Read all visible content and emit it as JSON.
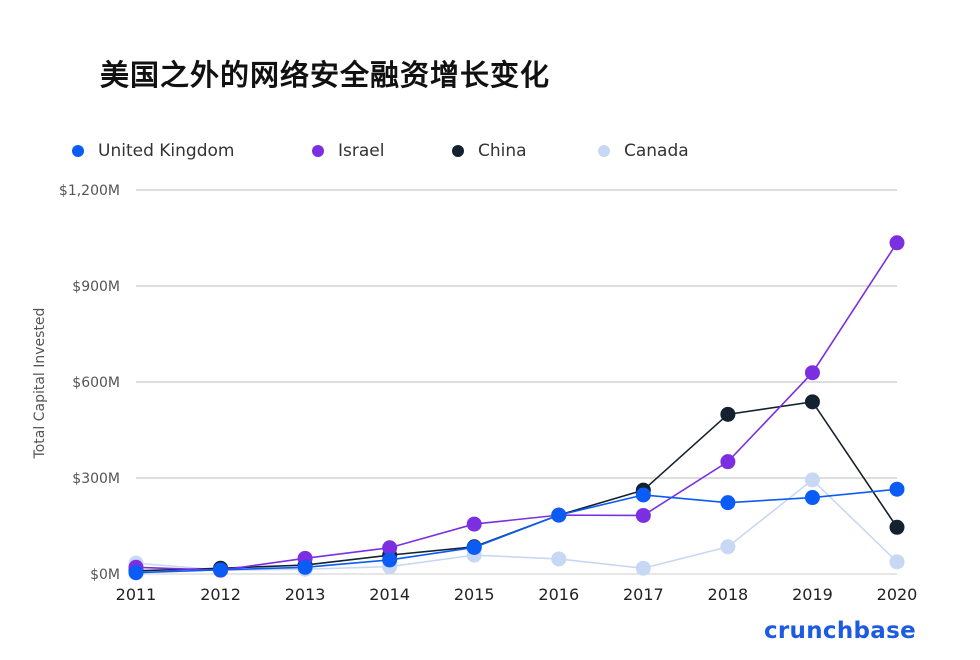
{
  "chart_data": {
    "type": "line",
    "title": "美国之外的网络安全融资增长变化",
    "xlabel": "",
    "ylabel": "Total Capital Invested",
    "categories": [
      "2011",
      "2012",
      "2013",
      "2014",
      "2015",
      "2016",
      "2017",
      "2018",
      "2019",
      "2020"
    ],
    "yticks": [
      "$0M",
      "$300M",
      "$600M",
      "$900M",
      "$1,200M"
    ],
    "ylim": [
      0,
      1200
    ],
    "grid": true,
    "legend_position": "top",
    "series": [
      {
        "name": "United Kingdom",
        "color": "#0a5cf5",
        "values": [
          4,
          13,
          21,
          44,
          83,
          184,
          247,
          223,
          239,
          265
        ]
      },
      {
        "name": "Israel",
        "color": "#7b2fe0",
        "values": [
          21,
          12,
          49,
          82,
          156,
          184,
          183,
          351,
          629,
          1035
        ]
      },
      {
        "name": "China",
        "color": "#14212f",
        "values": [
          10,
          18,
          28,
          59,
          85,
          184,
          262,
          499,
          538,
          146
        ]
      },
      {
        "name": "Canada",
        "color": "#c7d8f5",
        "values": [
          34,
          12,
          15,
          23,
          59,
          47,
          18,
          85,
          294,
          38
        ]
      }
    ]
  },
  "brand": "crunchbase"
}
